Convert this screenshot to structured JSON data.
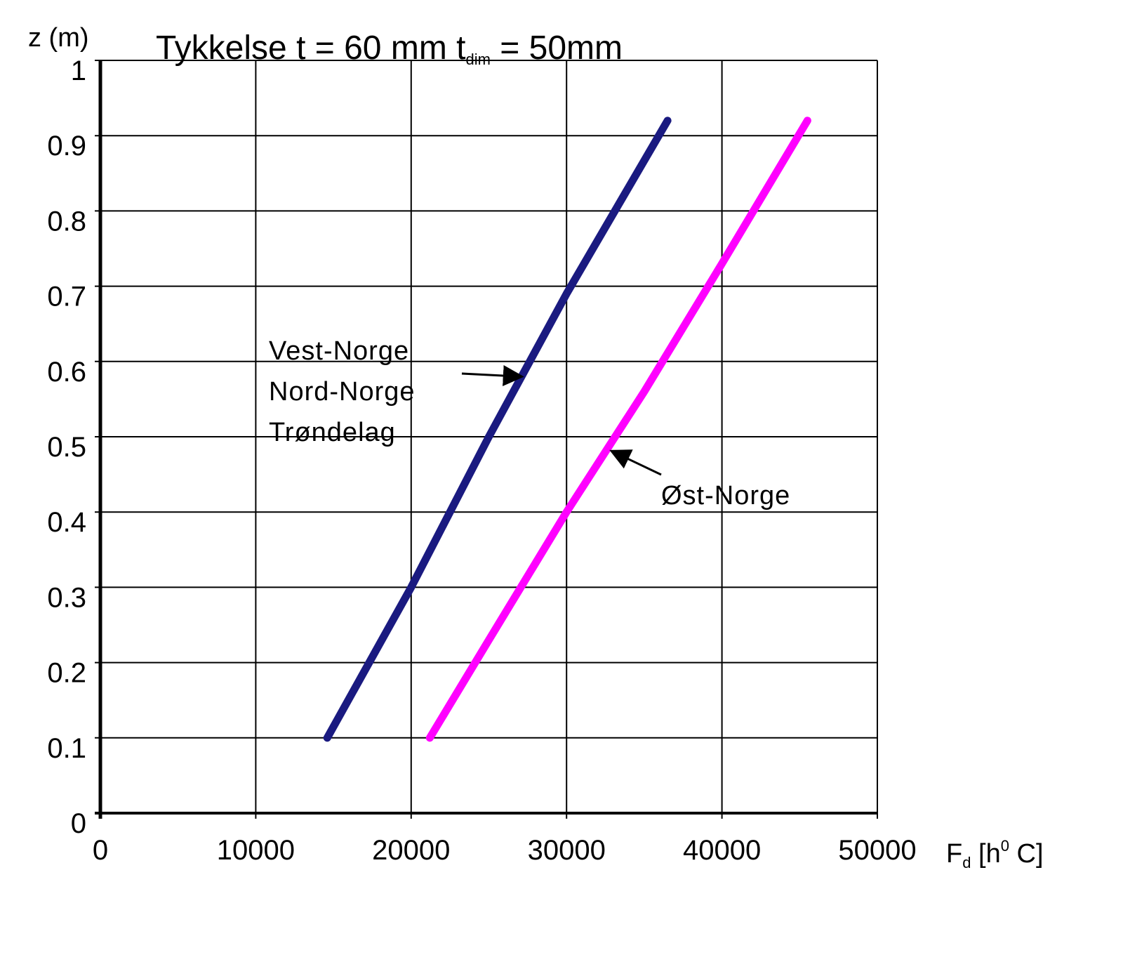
{
  "chart_data": {
    "type": "line",
    "title_main": "Tykkelse t = 60 mm  t",
    "title_sub": "dim",
    "title_tail": " = 50mm",
    "ylabel": "z (m)",
    "xlabel_main": "F",
    "xlabel_sub": "d",
    "xlabel_tail": " [h",
    "xlabel_sup": "0",
    "xlabel_end": " C]",
    "xlim": [
      0,
      50000
    ],
    "ylim": [
      0,
      1
    ],
    "x_ticks": [
      0,
      10000,
      20000,
      30000,
      40000,
      50000
    ],
    "x_tick_labels": [
      "0",
      "10000",
      "20000",
      "30000",
      "40000",
      "50000"
    ],
    "y_ticks": [
      0,
      0.1,
      0.2,
      0.3,
      0.4,
      0.5,
      0.6,
      0.7,
      0.8,
      0.9,
      1
    ],
    "y_tick_labels": [
      "0",
      "0.1",
      "0.2",
      "0.3",
      "0.4",
      "0.5",
      "0.6",
      "0.7",
      "0.8",
      "0.9",
      "1"
    ],
    "grid": true,
    "series": [
      {
        "name": "Vest-Norge / Nord-Norge / Trøndelag",
        "color": "#1a1a80",
        "x": [
          14600,
          20000,
          25000,
          30000,
          36500
        ],
        "y": [
          0.1,
          0.3,
          0.5,
          0.69,
          0.92
        ]
      },
      {
        "name": "Øst-Norge",
        "color": "#ff00ff",
        "x": [
          21200,
          25000,
          30000,
          35000,
          40000,
          45500
        ],
        "y": [
          0.1,
          0.23,
          0.4,
          0.56,
          0.73,
          0.92
        ]
      }
    ],
    "annotations": [
      {
        "lines": [
          "Vest-Norge",
          "Nord-Norge",
          "Trøndelag"
        ],
        "series": 0,
        "target": [
          27000,
          0.58
        ]
      },
      {
        "lines": [
          "Øst-Norge"
        ],
        "series": 1,
        "target": [
          33000,
          0.48
        ]
      }
    ]
  }
}
